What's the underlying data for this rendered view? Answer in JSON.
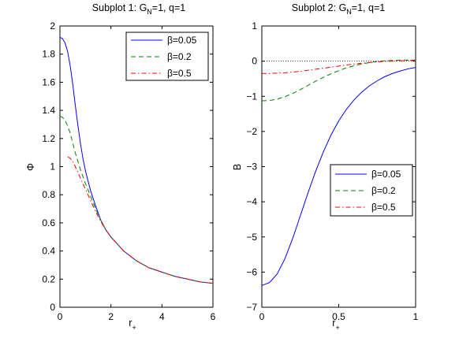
{
  "chart_data": [
    {
      "type": "line",
      "title": "Subplot 1: G",
      "title_sub": "N",
      "title_rest": "=1, q=1",
      "xlabel": "r",
      "xlabel_sub": "+",
      "ylabel": "Φ",
      "xlim": [
        0,
        6
      ],
      "ylim": [
        0,
        2
      ],
      "xticks": [
        "0",
        "2",
        "4",
        "6"
      ],
      "yticks": [
        "0",
        "0.2",
        "0.4",
        "0.6",
        "0.8",
        "1",
        "1.2",
        "1.4",
        "1.6",
        "1.8",
        "2"
      ],
      "grid": false,
      "legend_position": "top-right",
      "series": [
        {
          "name": "β=0.05",
          "color": "#0000ff",
          "style": "solid",
          "x": [
            0.0,
            0.1,
            0.2,
            0.3,
            0.4,
            0.5,
            0.6,
            0.7,
            0.8,
            0.9,
            1.0,
            1.2,
            1.4,
            1.6,
            1.8,
            2.0,
            2.5,
            3.0,
            3.5,
            4.0,
            4.5,
            5.0,
            5.5,
            6.0
          ],
          "y": [
            1.92,
            1.91,
            1.88,
            1.82,
            1.72,
            1.59,
            1.44,
            1.3,
            1.17,
            1.06,
            0.97,
            0.83,
            0.72,
            0.62,
            0.55,
            0.5,
            0.4,
            0.33,
            0.28,
            0.25,
            0.22,
            0.2,
            0.18,
            0.17
          ]
        },
        {
          "name": "β=0.2",
          "color": "#008000",
          "style": "dashed",
          "x": [
            0.0,
            0.1,
            0.2,
            0.3,
            0.4,
            0.5,
            0.6,
            0.7,
            0.8,
            1.0,
            1.2,
            1.4,
            1.6,
            1.8,
            2.0,
            2.5,
            3.0,
            3.5,
            4.0,
            4.5,
            5.0,
            5.5,
            6.0
          ],
          "y": [
            1.36,
            1.35,
            1.33,
            1.29,
            1.24,
            1.17,
            1.1,
            1.04,
            0.98,
            0.88,
            0.79,
            0.7,
            0.62,
            0.55,
            0.5,
            0.4,
            0.33,
            0.28,
            0.25,
            0.22,
            0.2,
            0.18,
            0.17
          ]
        },
        {
          "name": "β=0.5",
          "color": "#ff0000",
          "style": "dashdot",
          "x": [
            0.3,
            0.4,
            0.5,
            0.6,
            0.7,
            0.8,
            1.0,
            1.2,
            1.4,
            1.6,
            1.8,
            2.0,
            2.5,
            3.0,
            3.5,
            4.0,
            4.5,
            5.0,
            5.5,
            6.0
          ],
          "y": [
            1.07,
            1.06,
            1.04,
            1.0,
            0.96,
            0.92,
            0.84,
            0.76,
            0.68,
            0.61,
            0.55,
            0.5,
            0.4,
            0.33,
            0.28,
            0.25,
            0.22,
            0.2,
            0.18,
            0.17
          ]
        }
      ]
    },
    {
      "type": "line",
      "title": "Subplot 2: G",
      "title_sub": "N",
      "title_rest": "=1, q=1",
      "xlabel": "r",
      "xlabel_sub": "+",
      "ylabel": "B",
      "xlim": [
        0,
        1
      ],
      "ylim": [
        -7,
        1
      ],
      "xticks": [
        "0",
        "0.5",
        "1"
      ],
      "yticks": [
        "−7",
        "−6",
        "−5",
        "−4",
        "−3",
        "−2",
        "−1",
        "0",
        "1"
      ],
      "grid": false,
      "legend_position": "center-right",
      "reference_line_y": 0,
      "series": [
        {
          "name": "β=0.05",
          "color": "#0000ff",
          "style": "solid",
          "x": [
            0.0,
            0.05,
            0.1,
            0.15,
            0.2,
            0.25,
            0.3,
            0.35,
            0.4,
            0.45,
            0.5,
            0.55,
            0.6,
            0.65,
            0.7,
            0.75,
            0.8,
            0.85,
            0.9,
            0.95,
            1.0
          ],
          "y": [
            -6.38,
            -6.3,
            -6.05,
            -5.62,
            -5.05,
            -4.4,
            -3.75,
            -3.13,
            -2.58,
            -2.1,
            -1.7,
            -1.37,
            -1.1,
            -0.88,
            -0.7,
            -0.56,
            -0.44,
            -0.35,
            -0.28,
            -0.22,
            -0.18
          ]
        },
        {
          "name": "β=0.2",
          "color": "#008000",
          "style": "dashed",
          "x": [
            0.0,
            0.05,
            0.1,
            0.15,
            0.2,
            0.25,
            0.3,
            0.35,
            0.4,
            0.45,
            0.5,
            0.55,
            0.6,
            0.65,
            0.7,
            0.75,
            0.8,
            0.85,
            0.9,
            0.95,
            1.0
          ],
          "y": [
            -1.13,
            -1.12,
            -1.08,
            -1.01,
            -0.92,
            -0.81,
            -0.69,
            -0.57,
            -0.46,
            -0.36,
            -0.27,
            -0.19,
            -0.13,
            -0.08,
            -0.04,
            -0.01,
            0.01,
            0.02,
            0.03,
            0.03,
            0.03
          ]
        },
        {
          "name": "β=0.5",
          "color": "#ff0000",
          "style": "dashdot",
          "x": [
            0.0,
            0.05,
            0.1,
            0.15,
            0.2,
            0.25,
            0.3,
            0.35,
            0.4,
            0.45,
            0.5,
            0.55,
            0.6,
            0.65,
            0.7,
            0.75,
            0.8,
            0.85,
            0.9,
            0.95,
            1.0
          ],
          "y": [
            -0.35,
            -0.35,
            -0.34,
            -0.33,
            -0.31,
            -0.29,
            -0.26,
            -0.23,
            -0.2,
            -0.17,
            -0.14,
            -0.11,
            -0.08,
            -0.06,
            -0.04,
            -0.02,
            -0.01,
            0.0,
            0.01,
            0.02,
            0.03
          ]
        }
      ]
    }
  ]
}
